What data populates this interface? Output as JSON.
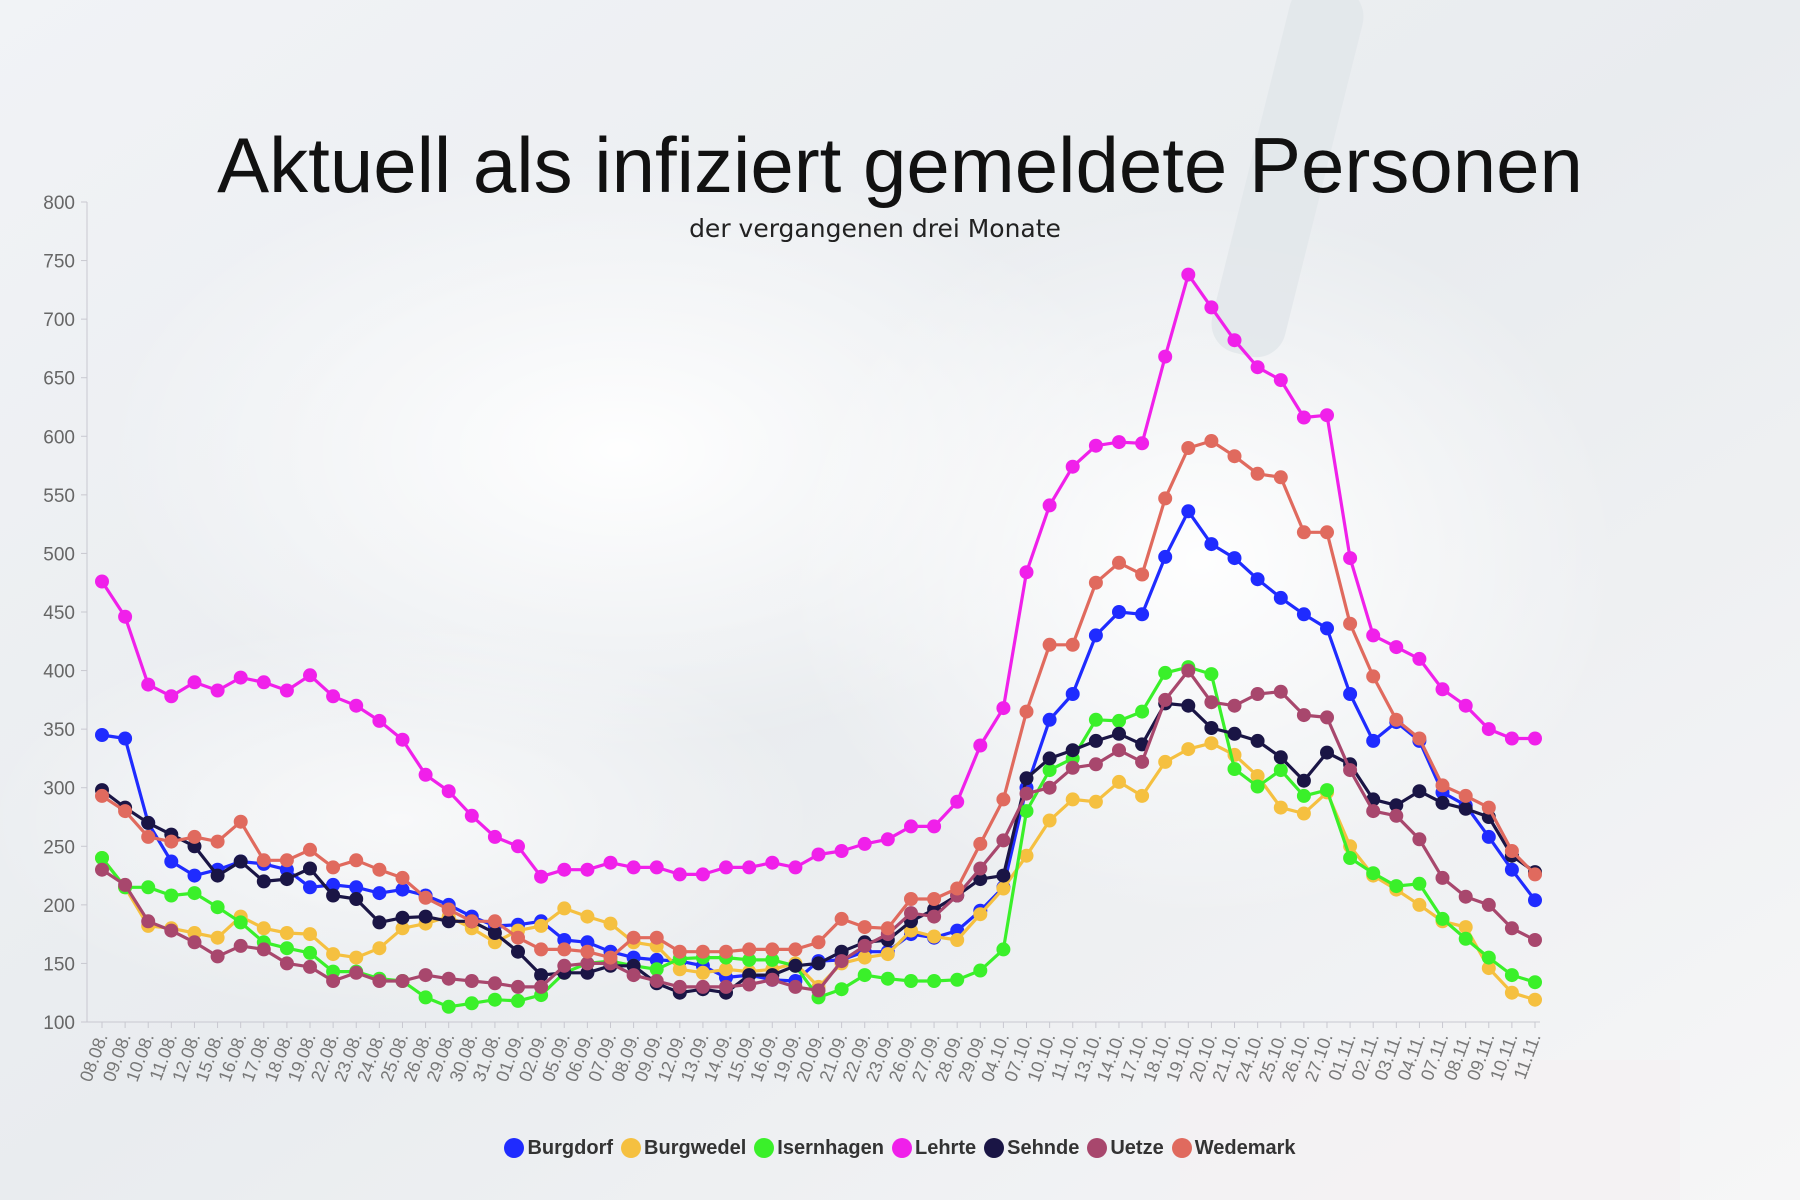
{
  "chart_data": {
    "type": "line",
    "title": "Aktuell als infiziert gemeldete Personen",
    "subtitle": "der vergangenen drei Monate",
    "xlabel": "",
    "ylabel": "",
    "ylim": [
      100,
      800
    ],
    "yticks": [
      100,
      150,
      200,
      250,
      300,
      350,
      400,
      450,
      500,
      550,
      600,
      650,
      700,
      750,
      800
    ],
    "legend_position": "bottom-center",
    "categories": [
      "08.08.",
      "09.08.",
      "10.08.",
      "11.08.",
      "12.08.",
      "15.08.",
      "16.08.",
      "17.08.",
      "18.08.",
      "19.08.",
      "22.08.",
      "23.08.",
      "24.08.",
      "25.08.",
      "26.08.",
      "29.08.",
      "30.08.",
      "31.08.",
      "01.09.",
      "02.09.",
      "05.09.",
      "06.09.",
      "07.09.",
      "08.09.",
      "09.09.",
      "12.09.",
      "13.09.",
      "14.09.",
      "15.09.",
      "16.09.",
      "19.09.",
      "20.09.",
      "21.09.",
      "22.09.",
      "23.09.",
      "26.09.",
      "27.09.",
      "28.09.",
      "29.09.",
      "04.10.",
      "07.10.",
      "10.10.",
      "11.10.",
      "13.10.",
      "14.10.",
      "17.10.",
      "18.10.",
      "19.10.",
      "20.10.",
      "21.10.",
      "24.10.",
      "25.10.",
      "26.10.",
      "27.10.",
      "01.11.",
      "02.11.",
      "03.11.",
      "04.11.",
      "07.11.",
      "08.11.",
      "09.11.",
      "10.11.",
      "11.11."
    ],
    "series": [
      {
        "name": "Burgdorf",
        "color": "#1f2bff",
        "values": [
          345,
          342,
          270,
          237,
          225,
          230,
          237,
          235,
          230,
          215,
          217,
          215,
          210,
          213,
          208,
          200,
          190,
          182,
          183,
          186,
          170,
          168,
          160,
          155,
          153,
          152,
          148,
          138,
          140,
          136,
          135,
          152,
          153,
          160,
          160,
          175,
          172,
          178,
          195,
          215,
          300,
          358,
          380,
          430,
          450,
          448,
          497,
          536,
          508,
          496,
          478,
          462,
          448,
          436,
          380,
          340,
          356,
          340,
          296,
          285,
          258,
          230,
          204
        ]
      },
      {
        "name": "Burgwedel",
        "color": "#f5c040",
        "values": [
          240,
          215,
          182,
          180,
          176,
          172,
          190,
          180,
          176,
          175,
          158,
          155,
          163,
          180,
          184,
          190,
          180,
          168,
          178,
          182,
          197,
          190,
          184,
          168,
          165,
          145,
          142,
          145,
          143,
          145,
          150,
          130,
          150,
          155,
          158,
          178,
          173,
          170,
          192,
          214,
          242,
          272,
          290,
          288,
          305,
          293,
          322,
          333,
          338,
          328,
          310,
          283,
          278,
          296,
          250,
          225,
          213,
          200,
          186,
          181,
          146,
          125,
          119
        ]
      },
      {
        "name": "Isernhagen",
        "color": "#3af02a",
        "values": [
          240,
          215,
          215,
          208,
          210,
          198,
          185,
          168,
          163,
          159,
          143,
          143,
          137,
          135,
          121,
          113,
          116,
          119,
          118,
          123,
          142,
          150,
          152,
          148,
          145,
          154,
          155,
          155,
          153,
          153,
          148,
          121,
          128,
          140,
          137,
          135,
          135,
          136,
          144,
          162,
          280,
          315,
          325,
          358,
          357,
          365,
          398,
          403,
          397,
          316,
          301,
          315,
          293,
          298,
          240,
          227,
          216,
          218,
          188,
          171,
          155,
          140,
          134
        ]
      },
      {
        "name": "Lehrte",
        "color": "#f020ea",
        "values": [
          476,
          446,
          388,
          378,
          390,
          383,
          394,
          390,
          383,
          396,
          378,
          370,
          357,
          341,
          311,
          297,
          276,
          258,
          250,
          224,
          230,
          230,
          236,
          232,
          232,
          226,
          226,
          232,
          232,
          236,
          232,
          243,
          246,
          252,
          256,
          267,
          267,
          288,
          336,
          368,
          484,
          541,
          574,
          592,
          595,
          594,
          668,
          738,
          710,
          682,
          659,
          648,
          616,
          618,
          496,
          430,
          420,
          410,
          384,
          370,
          350,
          342,
          342
        ]
      },
      {
        "name": "Sehnde",
        "color": "#1a1545",
        "values": [
          298,
          283,
          270,
          260,
          250,
          225,
          237,
          220,
          222,
          231,
          208,
          205,
          185,
          189,
          190,
          186,
          186,
          176,
          160,
          140,
          142,
          142,
          148,
          148,
          133,
          125,
          128,
          125,
          140,
          140,
          148,
          150,
          160,
          168,
          170,
          186,
          196,
          208,
          222,
          225,
          308,
          325,
          332,
          340,
          346,
          337,
          372,
          370,
          351,
          346,
          340,
          326,
          306,
          330,
          320,
          290,
          285,
          297,
          287,
          282,
          275,
          242,
          228
        ]
      },
      {
        "name": "Uetze",
        "color": "#a8476d",
        "values": [
          230,
          217,
          186,
          178,
          168,
          156,
          165,
          162,
          150,
          147,
          135,
          142,
          135,
          135,
          140,
          137,
          135,
          133,
          130,
          130,
          148,
          150,
          150,
          140,
          135,
          130,
          130,
          130,
          132,
          136,
          130,
          127,
          152,
          165,
          175,
          193,
          190,
          208,
          231,
          255,
          295,
          300,
          317,
          320,
          332,
          322,
          375,
          400,
          373,
          370,
          380,
          382,
          362,
          360,
          315,
          280,
          276,
          256,
          223,
          207,
          200,
          180,
          170
        ]
      },
      {
        "name": "Wedemark",
        "color": "#e06a5e",
        "values": [
          293,
          280,
          258,
          254,
          258,
          254,
          271,
          238,
          238,
          247,
          232,
          238,
          230,
          223,
          206,
          196,
          186,
          186,
          172,
          162,
          162,
          160,
          155,
          172,
          172,
          160,
          160,
          160,
          162,
          162,
          162,
          168,
          188,
          181,
          180,
          205,
          205,
          214,
          252,
          290,
          365,
          422,
          422,
          475,
          492,
          482,
          547,
          590,
          596,
          583,
          568,
          565,
          518,
          518,
          440,
          395,
          358,
          342,
          302,
          293,
          283,
          246,
          226
        ]
      }
    ]
  }
}
